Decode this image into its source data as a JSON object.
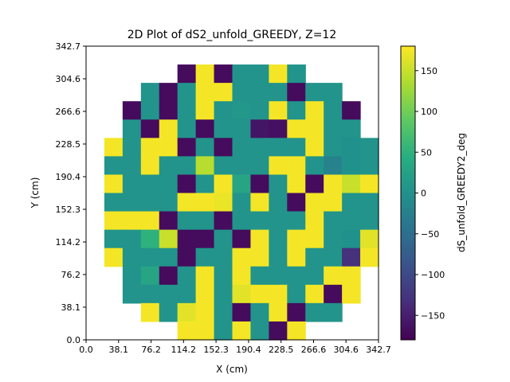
{
  "chart_data": {
    "type": "heatmap",
    "title": "2D Plot of dS2_unfold_GREEDY, Z=12",
    "xlabel": "X (cm)",
    "ylabel": "Y (cm)",
    "colorbar_label": "dS_unfold_GREEDY2_deg",
    "colormap": "viridis",
    "xlim": [
      0.0,
      342.7
    ],
    "ylim": [
      0.0,
      342.7
    ],
    "clim": [
      -180,
      180
    ],
    "x_ticks": [
      "0.0",
      "38.1",
      "76.2",
      "114.2",
      "152.3",
      "190.4",
      "228.5",
      "266.6",
      "304.6",
      "342.7"
    ],
    "y_ticks": [
      "0.0",
      "38.1",
      "76.2",
      "114.2",
      "152.3",
      "190.4",
      "228.5",
      "266.6",
      "304.6",
      "342.7"
    ],
    "colorbar_ticks": [
      "150",
      "100",
      "50",
      "0",
      "−50",
      "−100",
      "−150"
    ],
    "colorbar_tick_values": [
      150,
      100,
      50,
      0,
      -50,
      -100,
      -150
    ],
    "grid": {
      "cols": 16,
      "rows": 16,
      "x_edges": [
        0,
        21.42,
        42.84,
        64.26,
        85.68,
        107.09,
        128.51,
        149.93,
        171.35,
        192.77,
        214.19,
        235.61,
        257.03,
        278.44,
        299.86,
        321.28,
        342.7
      ],
      "row_order": "top-to-bottom",
      "values": [
        [
          null,
          null,
          null,
          null,
          null,
          null,
          null,
          null,
          null,
          null,
          null,
          null,
          null,
          null,
          null,
          null
        ],
        [
          null,
          null,
          null,
          null,
          null,
          -170,
          175,
          -170,
          5,
          5,
          175,
          5,
          null,
          null,
          null,
          null
        ],
        [
          null,
          null,
          null,
          5,
          -170,
          5,
          175,
          175,
          5,
          5,
          5,
          -170,
          5,
          5,
          null,
          null
        ],
        [
          null,
          null,
          -170,
          5,
          -170,
          5,
          175,
          5,
          10,
          5,
          175,
          5,
          175,
          5,
          -170,
          null
        ],
        [
          null,
          null,
          5,
          -170,
          175,
          5,
          -170,
          5,
          5,
          -160,
          -165,
          175,
          175,
          5,
          5,
          null
        ],
        [
          null,
          175,
          5,
          175,
          175,
          -170,
          5,
          -170,
          5,
          5,
          5,
          5,
          175,
          5,
          0,
          5
        ],
        [
          null,
          5,
          5,
          175,
          5,
          5,
          140,
          5,
          5,
          5,
          175,
          175,
          5,
          -20,
          0,
          5
        ],
        [
          null,
          175,
          5,
          5,
          5,
          -170,
          5,
          175,
          30,
          -170,
          5,
          175,
          -170,
          175,
          150,
          175
        ],
        [
          null,
          5,
          5,
          5,
          5,
          175,
          175,
          170,
          5,
          175,
          5,
          -170,
          175,
          175,
          5,
          5
        ],
        [
          null,
          175,
          175,
          175,
          -170,
          5,
          5,
          -170,
          5,
          5,
          5,
          5,
          175,
          5,
          5,
          5
        ],
        [
          null,
          5,
          5,
          50,
          150,
          -170,
          -170,
          5,
          -170,
          175,
          5,
          175,
          175,
          5,
          0,
          165
        ],
        [
          null,
          175,
          5,
          5,
          5,
          -170,
          5,
          5,
          175,
          175,
          5,
          175,
          5,
          5,
          -130,
          175
        ],
        [
          null,
          null,
          5,
          30,
          -170,
          5,
          175,
          5,
          175,
          5,
          5,
          5,
          5,
          175,
          175,
          null
        ],
        [
          null,
          null,
          5,
          5,
          5,
          5,
          175,
          5,
          165,
          175,
          175,
          5,
          175,
          -170,
          175,
          null
        ],
        [
          null,
          null,
          null,
          175,
          5,
          165,
          175,
          5,
          -170,
          5,
          175,
          -170,
          5,
          5,
          null,
          null
        ],
        [
          null,
          null,
          null,
          null,
          null,
          175,
          175,
          5,
          175,
          5,
          -170,
          175,
          null,
          null,
          null,
          null
        ]
      ]
    }
  }
}
